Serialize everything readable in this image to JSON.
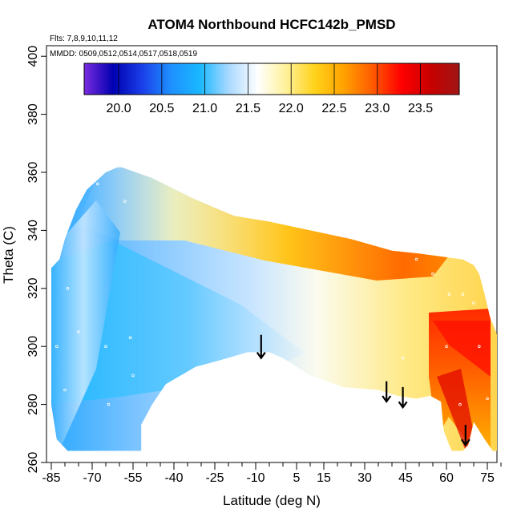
{
  "chart_data": {
    "type": "heatmap",
    "title": "ATOM4 Northbound HCFC142b_PMSD",
    "subtitle_flights": "Flts: 7,8,9,10,11,12",
    "subtitle_dates": "MMDD: 0509,0512,0514,0517,0518,0519",
    "xlabel": "Latitude (deg N)",
    "ylabel": "Theta (C)",
    "xlim": [
      -87,
      84
    ],
    "ylim": [
      260,
      405
    ],
    "x_ticks": [
      -85,
      -70,
      -55,
      -40,
      -25,
      -10,
      5,
      15,
      30,
      45,
      60,
      75
    ],
    "x_tick_labels": [
      "-85",
      "-70",
      "-55",
      "-40",
      "-25",
      "-10",
      "5",
      "15",
      "30",
      "45",
      "60",
      "75"
    ],
    "y_ticks": [
      260,
      280,
      300,
      320,
      340,
      360,
      380,
      400
    ],
    "y_tick_labels": [
      "260",
      "280",
      "300",
      "320",
      "340",
      "360",
      "380",
      "400"
    ],
    "colorbar": {
      "min": 19.6,
      "max": 23.95,
      "ticks": [
        20.0,
        20.5,
        21.0,
        21.5,
        22.0,
        22.5,
        23.0,
        23.5
      ],
      "tick_labels": [
        "20.0",
        "20.5",
        "21.0",
        "21.5",
        "22.0",
        "22.5",
        "23.0",
        "23.5"
      ],
      "colors": [
        "#7b2be0",
        "#0000b0",
        "#1a3ee8",
        "#1e90ff",
        "#19b8ff",
        "#a8d8ff",
        "#ffffff",
        "#fff19a",
        "#ffd21a",
        "#ffa200",
        "#ff5a00",
        "#ff0000",
        "#c80000",
        "#a01616"
      ]
    },
    "arrows_latitude": [
      -8,
      38,
      44,
      67
    ],
    "value_fields": [
      {
        "region": "southern high latitudes, low theta",
        "approx_value": 20.9
      },
      {
        "region": "tropical mid-troposphere",
        "approx_value": 21.5
      },
      {
        "region": "northern mid-latitudes, theta 315-330",
        "approx_value": 23.0
      },
      {
        "region": "arctic, theta 270-305",
        "approx_value": 23.4
      }
    ]
  }
}
